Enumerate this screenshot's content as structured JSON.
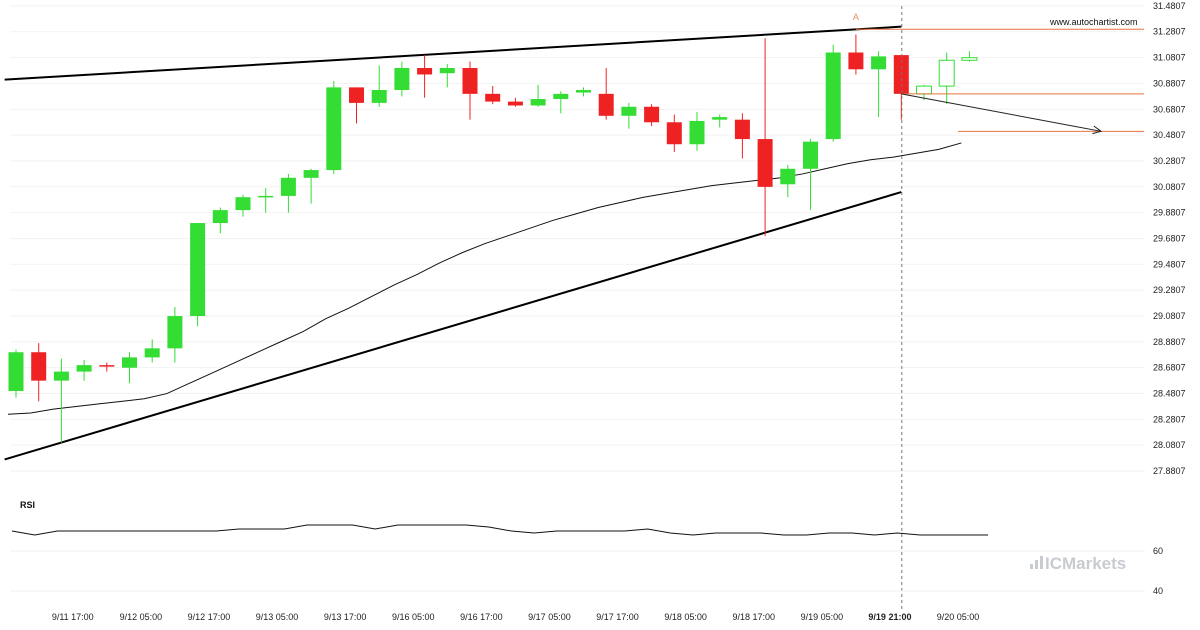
{
  "watermark": {
    "site": "www.autochartist.com",
    "brand": "ICMarkets"
  },
  "colors": {
    "bullish": "#33dd33",
    "bearish": "#ee2222",
    "pattern": "#000000",
    "forecast": "#e8743b",
    "ma": "#111111"
  },
  "chart_data": {
    "type": "candlestick",
    "title": "",
    "ylim": [
      27.78,
      31.48
    ],
    "yticks": [
      "31.4807",
      "31.2807",
      "31.0807",
      "30.8807",
      "30.6807",
      "30.4807",
      "30.2807",
      "30.0807",
      "29.8807",
      "29.6807",
      "29.4807",
      "29.2807",
      "29.0807",
      "28.8807",
      "28.6807",
      "28.4807",
      "28.2807",
      "28.0807",
      "27.8807"
    ],
    "xticks": [
      {
        "label": "9/11 17:00",
        "index": 2.5
      },
      {
        "label": "9/12 05:00",
        "index": 5.5
      },
      {
        "label": "9/12 17:00",
        "index": 8.5
      },
      {
        "label": "9/13 05:00",
        "index": 11.5
      },
      {
        "label": "9/13 17:00",
        "index": 14.5
      },
      {
        "label": "9/16 05:00",
        "index": 17.5
      },
      {
        "label": "9/16 17:00",
        "index": 20.5
      },
      {
        "label": "9/17 05:00",
        "index": 23.5
      },
      {
        "label": "9/17 17:00",
        "index": 26.5
      },
      {
        "label": "9/18 05:00",
        "index": 29.5
      },
      {
        "label": "9/18 17:00",
        "index": 32.5
      },
      {
        "label": "9/19 05:00",
        "index": 35.5
      },
      {
        "label": "9/19 21:00",
        "index": 38.5,
        "bold": true
      },
      {
        "label": "9/20 05:00",
        "index": 41.5
      }
    ],
    "candles": [
      {
        "o": 28.5,
        "h": 28.82,
        "l": 28.45,
        "c": 28.8
      },
      {
        "o": 28.8,
        "h": 28.87,
        "l": 28.42,
        "c": 28.58
      },
      {
        "o": 28.58,
        "h": 28.75,
        "l": 28.1,
        "c": 28.65
      },
      {
        "o": 28.65,
        "h": 28.74,
        "l": 28.58,
        "c": 28.7
      },
      {
        "o": 28.7,
        "h": 28.72,
        "l": 28.65,
        "c": 28.69
      },
      {
        "o": 28.68,
        "h": 28.8,
        "l": 28.56,
        "c": 28.76
      },
      {
        "o": 28.76,
        "h": 28.9,
        "l": 28.72,
        "c": 28.83
      },
      {
        "o": 28.83,
        "h": 29.15,
        "l": 28.72,
        "c": 29.08
      },
      {
        "o": 29.08,
        "h": 29.8,
        "l": 29.0,
        "c": 29.8
      },
      {
        "o": 29.8,
        "h": 29.92,
        "l": 29.72,
        "c": 29.9
      },
      {
        "o": 29.9,
        "h": 30.02,
        "l": 29.85,
        "c": 30.0
      },
      {
        "o": 30.0,
        "h": 30.07,
        "l": 29.88,
        "c": 30.01
      },
      {
        "o": 30.01,
        "h": 30.18,
        "l": 29.88,
        "c": 30.15
      },
      {
        "o": 30.15,
        "h": 30.22,
        "l": 29.95,
        "c": 30.21
      },
      {
        "o": 30.21,
        "h": 30.9,
        "l": 30.18,
        "c": 30.85
      },
      {
        "o": 30.85,
        "h": 30.85,
        "l": 30.57,
        "c": 30.73
      },
      {
        "o": 30.73,
        "h": 31.02,
        "l": 30.7,
        "c": 30.83
      },
      {
        "o": 30.83,
        "h": 31.05,
        "l": 30.78,
        "c": 31.0
      },
      {
        "o": 31.0,
        "h": 31.1,
        "l": 30.77,
        "c": 30.95
      },
      {
        "o": 30.96,
        "h": 31.03,
        "l": 30.85,
        "c": 31.0
      },
      {
        "o": 31.0,
        "h": 31.05,
        "l": 30.6,
        "c": 30.8
      },
      {
        "o": 30.8,
        "h": 30.86,
        "l": 30.72,
        "c": 30.74
      },
      {
        "o": 30.74,
        "h": 30.77,
        "l": 30.7,
        "c": 30.71
      },
      {
        "o": 30.71,
        "h": 30.87,
        "l": 30.7,
        "c": 30.76
      },
      {
        "o": 30.76,
        "h": 30.82,
        "l": 30.65,
        "c": 30.8
      },
      {
        "o": 30.81,
        "h": 30.85,
        "l": 30.78,
        "c": 30.83
      },
      {
        "o": 30.8,
        "h": 31.0,
        "l": 30.6,
        "c": 30.63
      },
      {
        "o": 30.63,
        "h": 30.73,
        "l": 30.53,
        "c": 30.7
      },
      {
        "o": 30.7,
        "h": 30.72,
        "l": 30.55,
        "c": 30.58
      },
      {
        "o": 30.58,
        "h": 30.64,
        "l": 30.35,
        "c": 30.41
      },
      {
        "o": 30.41,
        "h": 30.66,
        "l": 30.36,
        "c": 30.59
      },
      {
        "o": 30.6,
        "h": 30.64,
        "l": 30.54,
        "c": 30.62
      },
      {
        "o": 30.6,
        "h": 30.65,
        "l": 30.3,
        "c": 30.45
      },
      {
        "o": 30.45,
        "h": 31.23,
        "l": 29.7,
        "c": 30.08
      },
      {
        "o": 30.1,
        "h": 30.25,
        "l": 30.0,
        "c": 30.22
      },
      {
        "o": 30.22,
        "h": 30.45,
        "l": 29.9,
        "c": 30.43
      },
      {
        "o": 30.45,
        "h": 31.18,
        "l": 30.43,
        "c": 31.12
      },
      {
        "o": 31.12,
        "h": 31.26,
        "l": 30.95,
        "c": 30.99
      },
      {
        "o": 30.99,
        "h": 31.13,
        "l": 30.62,
        "c": 31.09
      },
      {
        "o": 31.1,
        "h": 31.1,
        "l": 30.6,
        "c": 30.8
      }
    ],
    "forecast_candles": [
      {
        "o": 30.8,
        "h": 30.87,
        "l": 30.75,
        "c": 30.86
      },
      {
        "o": 30.86,
        "h": 31.12,
        "l": 30.72,
        "c": 31.06
      },
      {
        "o": 31.06,
        "h": 31.13,
        "l": 31.05,
        "c": 31.08
      }
    ],
    "moving_average": [
      28.32,
      28.33,
      28.36,
      28.38,
      28.4,
      28.42,
      28.44,
      28.48,
      28.56,
      28.64,
      28.72,
      28.8,
      28.88,
      28.96,
      29.06,
      29.14,
      29.23,
      29.32,
      29.4,
      29.49,
      29.57,
      29.64,
      29.7,
      29.76,
      29.82,
      29.87,
      29.92,
      29.96,
      30.0,
      30.03,
      30.06,
      30.09,
      30.11,
      30.13,
      30.15,
      30.18,
      30.22,
      30.26,
      30.29,
      30.31,
      30.34,
      30.37,
      30.42
    ],
    "patterns": [
      {
        "type": "rising-wedge",
        "upper": [
          [
            -0.5,
            30.91
          ],
          [
            39,
            31.32
          ]
        ],
        "lower": [
          [
            -0.5,
            27.97
          ],
          [
            39,
            30.04
          ]
        ]
      }
    ],
    "pattern_point": {
      "label": "A",
      "index": 37,
      "value": 31.37
    },
    "breakout_index": 39,
    "levels": [
      {
        "value": 31.3,
        "from": 37,
        "to": 50
      },
      {
        "value": 30.8,
        "from": 39,
        "to": 50
      },
      {
        "value": 30.51,
        "from": 41.5,
        "to": 50
      }
    ],
    "forecast_arrow": {
      "from": [
        39,
        30.8
      ],
      "to": [
        47.8,
        30.51
      ]
    },
    "rsi": {
      "label": "RSI",
      "ticks": [
        "60",
        "40"
      ],
      "ylim": [
        33,
        88
      ],
      "values": [
        70,
        68,
        70,
        70,
        70,
        70,
        70,
        70,
        70,
        70,
        71,
        71,
        71,
        73,
        73,
        73,
        71,
        73,
        73,
        73,
        73,
        72,
        70,
        69,
        70,
        70,
        70,
        70,
        71,
        69,
        68,
        69,
        69,
        69,
        68,
        68,
        69,
        69,
        68,
        69,
        68,
        68,
        68,
        68
      ]
    }
  }
}
